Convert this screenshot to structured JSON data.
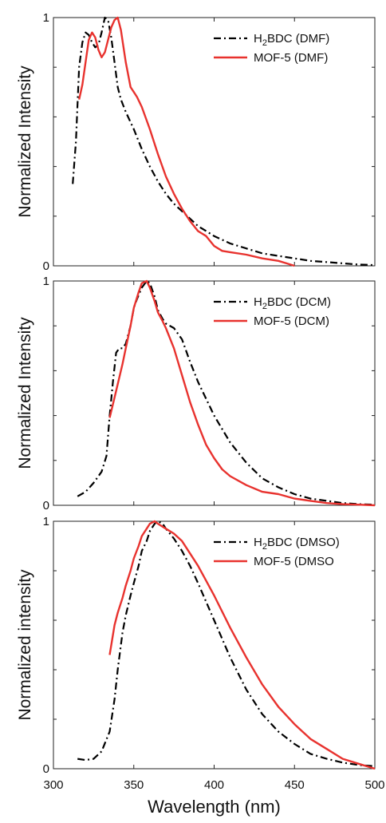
{
  "colors": {
    "h2bdc": "#000000",
    "mof5": "#e8322e"
  },
  "xaxis": {
    "label": "Wavelength (nm)",
    "ticks": [
      300,
      350,
      400,
      450,
      500
    ]
  },
  "chart_data": [
    {
      "type": "line",
      "ylabel": "Normalized Intensity",
      "xlim": [
        300,
        500
      ],
      "ylim": [
        0,
        1
      ],
      "yticks": [
        0,
        1
      ],
      "legend_position": "top-right",
      "series": [
        {
          "name_main": "H",
          "name_sub": "2",
          "name_rest": "BDC (DMF)",
          "style": "dashdot",
          "x": [
            312,
            314,
            316,
            318,
            320,
            322,
            324,
            326,
            328,
            330,
            332,
            334,
            336,
            338,
            340,
            342,
            345,
            350,
            355,
            360,
            365,
            370,
            375,
            380,
            390,
            400,
            410,
            420,
            430,
            440,
            450,
            460,
            470,
            480,
            490,
            500
          ],
          "y": [
            0.33,
            0.5,
            0.8,
            0.9,
            0.94,
            0.93,
            0.9,
            0.88,
            0.89,
            0.94,
            1.0,
            0.99,
            0.92,
            0.82,
            0.72,
            0.67,
            0.62,
            0.55,
            0.47,
            0.4,
            0.34,
            0.29,
            0.25,
            0.22,
            0.16,
            0.12,
            0.09,
            0.07,
            0.05,
            0.04,
            0.03,
            0.02,
            0.015,
            0.01,
            0.005,
            0.003
          ]
        },
        {
          "name_main": "MOF-5 (DMF)",
          "name_sub": "",
          "name_rest": "",
          "style": "solid",
          "x": [
            316,
            318,
            320,
            322,
            324,
            326,
            328,
            330,
            332,
            334,
            336,
            338,
            340,
            342,
            345,
            348,
            350,
            352,
            355,
            360,
            365,
            370,
            375,
            380,
            385,
            390,
            395,
            400,
            405,
            410,
            420,
            430,
            440,
            445,
            450
          ],
          "y": [
            0.67,
            0.73,
            0.82,
            0.91,
            0.94,
            0.92,
            0.87,
            0.84,
            0.86,
            0.91,
            0.96,
            0.99,
            1.0,
            0.95,
            0.82,
            0.72,
            0.7,
            0.68,
            0.64,
            0.55,
            0.45,
            0.36,
            0.29,
            0.23,
            0.18,
            0.14,
            0.12,
            0.08,
            0.06,
            0.055,
            0.045,
            0.03,
            0.02,
            0.01,
            0.0
          ]
        }
      ]
    },
    {
      "type": "line",
      "ylabel": "Normalized Intensity",
      "xlim": [
        300,
        500
      ],
      "ylim": [
        0,
        1
      ],
      "yticks": [
        0,
        1
      ],
      "legend_position": "top-right",
      "series": [
        {
          "name_main": "H",
          "name_sub": "2",
          "name_rest": "BDC (DCM)",
          "style": "dashdot",
          "x": [
            315,
            320,
            325,
            330,
            333,
            335,
            337,
            339,
            341,
            343,
            345,
            348,
            350,
            352,
            355,
            358,
            360,
            363,
            365,
            368,
            370,
            375,
            380,
            385,
            390,
            400,
            410,
            420,
            430,
            440,
            450,
            460,
            470,
            480,
            490,
            500
          ],
          "y": [
            0.04,
            0.06,
            0.1,
            0.15,
            0.22,
            0.4,
            0.55,
            0.68,
            0.7,
            0.7,
            0.72,
            0.8,
            0.88,
            0.92,
            0.97,
            1.0,
            0.99,
            0.93,
            0.87,
            0.83,
            0.81,
            0.79,
            0.74,
            0.64,
            0.55,
            0.4,
            0.28,
            0.19,
            0.12,
            0.08,
            0.05,
            0.03,
            0.02,
            0.01,
            0.005,
            0.003
          ]
        },
        {
          "name_main": "MOF-5 (DCM)",
          "name_sub": "",
          "name_rest": "",
          "style": "solid",
          "x": [
            335,
            338,
            340,
            343,
            345,
            348,
            350,
            353,
            355,
            358,
            360,
            363,
            365,
            368,
            370,
            375,
            380,
            385,
            390,
            395,
            400,
            405,
            410,
            420,
            430,
            440,
            450,
            460,
            470,
            480,
            490,
            500
          ],
          "y": [
            0.39,
            0.48,
            0.54,
            0.63,
            0.7,
            0.8,
            0.88,
            0.95,
            0.99,
            1.0,
            0.97,
            0.91,
            0.86,
            0.82,
            0.79,
            0.7,
            0.58,
            0.46,
            0.36,
            0.27,
            0.21,
            0.16,
            0.13,
            0.09,
            0.06,
            0.05,
            0.03,
            0.02,
            0.01,
            0.005,
            0.003,
            0.0
          ]
        }
      ]
    },
    {
      "type": "line",
      "ylabel": "Normalized intensity",
      "xlim": [
        300,
        500
      ],
      "ylim": [
        0,
        1
      ],
      "yticks": [
        0,
        1
      ],
      "legend_position": "top-right",
      "series": [
        {
          "name_main": "H",
          "name_sub": "2",
          "name_rest": "BDC (DMSO)",
          "style": "dashdot",
          "x": [
            315,
            320,
            325,
            330,
            335,
            338,
            340,
            343,
            345,
            348,
            350,
            353,
            355,
            358,
            360,
            363,
            365,
            368,
            370,
            375,
            380,
            385,
            390,
            400,
            410,
            420,
            430,
            440,
            450,
            460,
            470,
            480,
            490,
            500
          ],
          "y": [
            0.04,
            0.035,
            0.04,
            0.07,
            0.15,
            0.28,
            0.4,
            0.55,
            0.62,
            0.7,
            0.75,
            0.82,
            0.88,
            0.92,
            0.96,
            0.99,
            1.0,
            0.99,
            0.97,
            0.93,
            0.88,
            0.82,
            0.75,
            0.6,
            0.45,
            0.32,
            0.22,
            0.15,
            0.1,
            0.06,
            0.04,
            0.025,
            0.015,
            0.01
          ]
        },
        {
          "name_main": "MOF-5 (DMSO",
          "name_sub": "",
          "name_rest": "",
          "style": "solid",
          "x": [
            335,
            338,
            340,
            343,
            345,
            348,
            350,
            353,
            355,
            358,
            360,
            363,
            365,
            370,
            375,
            380,
            385,
            390,
            400,
            410,
            420,
            430,
            440,
            450,
            460,
            470,
            480,
            490,
            500
          ],
          "y": [
            0.46,
            0.58,
            0.63,
            0.69,
            0.74,
            0.8,
            0.85,
            0.9,
            0.94,
            0.97,
            0.99,
            1.0,
            0.99,
            0.97,
            0.95,
            0.92,
            0.87,
            0.82,
            0.7,
            0.57,
            0.45,
            0.34,
            0.25,
            0.18,
            0.12,
            0.08,
            0.04,
            0.02,
            0.0
          ]
        }
      ]
    }
  ]
}
